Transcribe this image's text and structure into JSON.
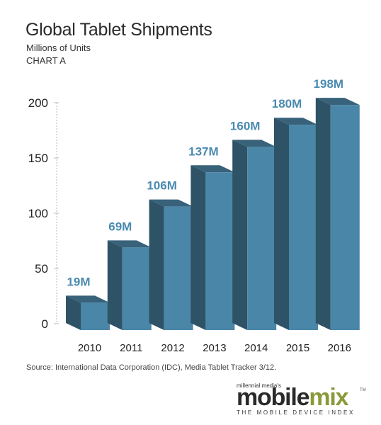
{
  "title": "Global Tablet Shipments",
  "subtitle": "Millions of Units",
  "chart_label": "CHART A",
  "source": "Source: International Data Corporation (IDC), Media Tablet Tracker 3/12.",
  "logo": {
    "top_text": "millennial media's",
    "word_1": "mobile",
    "word_2": "mix",
    "trademark": "TM",
    "tagline": "THE MOBILE DEVICE INDEX"
  },
  "colors": {
    "bar_front": "#4a86a8",
    "bar_side": "#2e5266",
    "bar_top": "#38627a",
    "label": "#4a8ab0",
    "gridline": "#bbbbbb"
  },
  "chart_data": {
    "type": "bar",
    "categories": [
      "2010",
      "2011",
      "2012",
      "2013",
      "2014",
      "2015",
      "2016"
    ],
    "values": [
      19,
      69,
      106,
      137,
      160,
      180,
      198
    ],
    "data_labels": [
      "19M",
      "69M",
      "106M",
      "137M",
      "160M",
      "180M",
      "198M"
    ],
    "title": "Global Tablet Shipments",
    "ylabel": "",
    "xlabel": "",
    "ylim": [
      0,
      200
    ],
    "yticks": [
      0,
      50,
      100,
      150,
      200
    ],
    "style": "3d-columns",
    "grid": false
  }
}
